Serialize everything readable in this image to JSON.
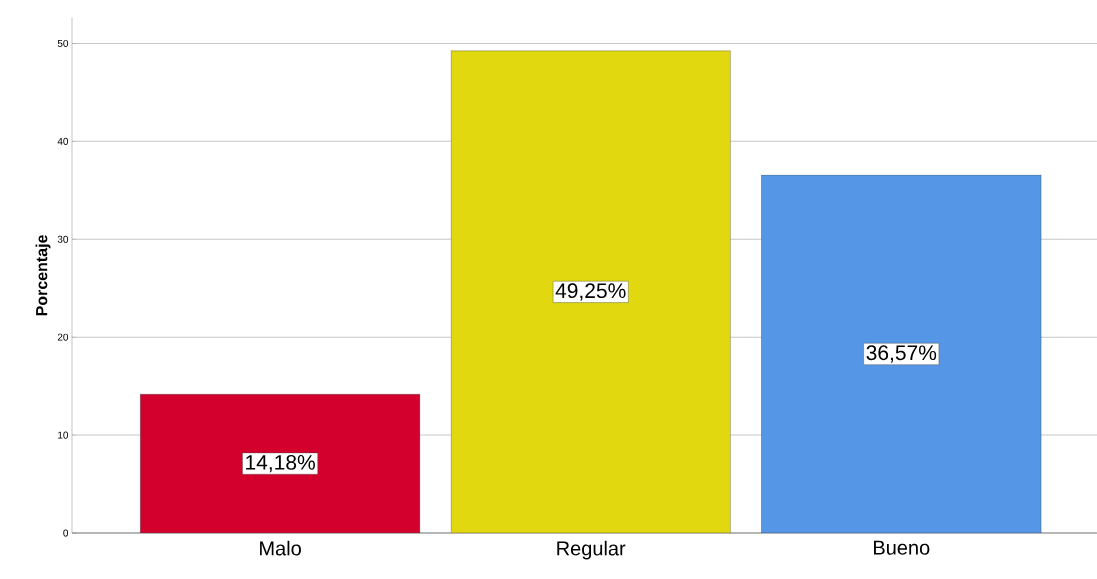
{
  "chart_data": {
    "type": "bar",
    "ylabel": "Porcentaje",
    "categories": [
      "Malo",
      "Regular",
      "Bueno"
    ],
    "values": [
      14.18,
      49.25,
      36.57
    ],
    "value_labels": [
      "14,18%",
      "49,25%",
      "36,57%"
    ],
    "colors": [
      "#d3002d",
      "#e1d80f",
      "#5596e6"
    ],
    "ylim": [
      0,
      52.6
    ],
    "yticks": [
      0,
      10,
      20,
      30,
      40,
      50
    ],
    "grid": "y"
  }
}
